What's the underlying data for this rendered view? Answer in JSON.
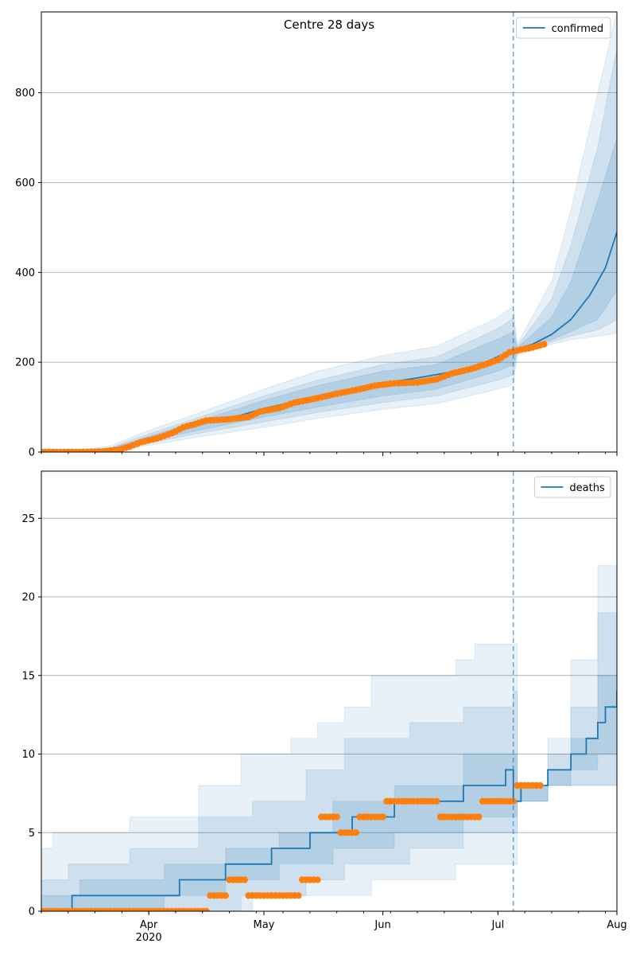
{
  "chart_data": [
    {
      "type": "line",
      "title": "Centre 28 days",
      "legend": {
        "entries": [
          "confirmed"
        ],
        "position": "top-right"
      },
      "grid": "horizontal",
      "x_start": "2020-03-04",
      "x_end": "2020-08-01",
      "vline_date": "2020-07-05",
      "xticks": [
        {
          "date": "2020-04-01",
          "label": "Apr",
          "sublabel": "2020"
        },
        {
          "date": "2020-05-01",
          "label": "May",
          "sublabel": ""
        },
        {
          "date": "2020-06-01",
          "label": "Jun",
          "sublabel": ""
        },
        {
          "date": "2020-07-01",
          "label": "Jul",
          "sublabel": ""
        },
        {
          "date": "2020-08-01",
          "label": "Aug",
          "sublabel": ""
        }
      ],
      "ylim": [
        0,
        980
      ],
      "yticks": [
        0,
        200,
        400,
        600,
        800
      ],
      "model_line": [
        {
          "x": "2020-03-04",
          "y": 0
        },
        {
          "x": "2020-03-14",
          "y": 1
        },
        {
          "x": "2020-03-22",
          "y": 5
        },
        {
          "x": "2020-03-28",
          "y": 15
        },
        {
          "x": "2020-04-04",
          "y": 35
        },
        {
          "x": "2020-04-11",
          "y": 55
        },
        {
          "x": "2020-04-18",
          "y": 70
        },
        {
          "x": "2020-04-25",
          "y": 82
        },
        {
          "x": "2020-05-01",
          "y": 97
        },
        {
          "x": "2020-05-08",
          "y": 110
        },
        {
          "x": "2020-05-15",
          "y": 125
        },
        {
          "x": "2020-05-22",
          "y": 137
        },
        {
          "x": "2020-06-01",
          "y": 153
        },
        {
          "x": "2020-06-10",
          "y": 165
        },
        {
          "x": "2020-06-20",
          "y": 180
        },
        {
          "x": "2020-06-27",
          "y": 197
        },
        {
          "x": "2020-07-05",
          "y": 228
        },
        {
          "x": "2020-07-10",
          "y": 240
        },
        {
          "x": "2020-07-15",
          "y": 262
        },
        {
          "x": "2020-07-20",
          "y": 295
        },
        {
          "x": "2020-07-25",
          "y": 350
        },
        {
          "x": "2020-07-29",
          "y": 410
        },
        {
          "x": "2020-08-01",
          "y": 490
        }
      ],
      "bands": [
        [
          {
            "x": "2020-03-04",
            "lo": 0,
            "hi": 0
          },
          {
            "x": "2020-03-14",
            "lo": 0,
            "hi": 3
          },
          {
            "x": "2020-03-22",
            "lo": 1,
            "hi": 14
          },
          {
            "x": "2020-04-01",
            "lo": 15,
            "hi": 48
          },
          {
            "x": "2020-04-15",
            "lo": 35,
            "hi": 90
          },
          {
            "x": "2020-05-01",
            "lo": 55,
            "hi": 140
          },
          {
            "x": "2020-05-15",
            "lo": 75,
            "hi": 180
          },
          {
            "x": "2020-06-01",
            "lo": 95,
            "hi": 215
          },
          {
            "x": "2020-06-15",
            "lo": 108,
            "hi": 235
          },
          {
            "x": "2020-07-01",
            "lo": 140,
            "hi": 300
          },
          {
            "x": "2020-07-05",
            "lo": 150,
            "hi": 325
          },
          {
            "x": "2020-07-06",
            "lo": 215,
            "hi": 240
          },
          {
            "x": "2020-07-15",
            "lo": 240,
            "hi": 380
          },
          {
            "x": "2020-07-20",
            "lo": 250,
            "hi": 540
          },
          {
            "x": "2020-07-27",
            "lo": 258,
            "hi": 800
          },
          {
            "x": "2020-08-01",
            "lo": 265,
            "hi": 980
          }
        ],
        [
          {
            "x": "2020-03-04",
            "lo": 0,
            "hi": 0
          },
          {
            "x": "2020-03-14",
            "lo": 0,
            "hi": 2
          },
          {
            "x": "2020-03-22",
            "lo": 2,
            "hi": 10
          },
          {
            "x": "2020-04-01",
            "lo": 20,
            "hi": 40
          },
          {
            "x": "2020-04-15",
            "lo": 43,
            "hi": 80
          },
          {
            "x": "2020-05-01",
            "lo": 67,
            "hi": 125
          },
          {
            "x": "2020-05-15",
            "lo": 88,
            "hi": 160
          },
          {
            "x": "2020-06-01",
            "lo": 110,
            "hi": 195
          },
          {
            "x": "2020-06-15",
            "lo": 125,
            "hi": 212
          },
          {
            "x": "2020-07-01",
            "lo": 160,
            "hi": 275
          },
          {
            "x": "2020-07-05",
            "lo": 172,
            "hi": 298
          },
          {
            "x": "2020-07-06",
            "lo": 220,
            "hi": 235
          },
          {
            "x": "2020-07-15",
            "lo": 245,
            "hi": 340
          },
          {
            "x": "2020-07-20",
            "lo": 258,
            "hi": 460
          },
          {
            "x": "2020-07-27",
            "lo": 272,
            "hi": 680
          },
          {
            "x": "2020-08-01",
            "lo": 295,
            "hi": 900
          }
        ],
        [
          {
            "x": "2020-03-04",
            "lo": 0,
            "hi": 0
          },
          {
            "x": "2020-03-14",
            "lo": 0,
            "hi": 1
          },
          {
            "x": "2020-03-22",
            "lo": 3,
            "hi": 8
          },
          {
            "x": "2020-04-01",
            "lo": 25,
            "hi": 35
          },
          {
            "x": "2020-04-15",
            "lo": 50,
            "hi": 72
          },
          {
            "x": "2020-05-01",
            "lo": 78,
            "hi": 115
          },
          {
            "x": "2020-05-15",
            "lo": 100,
            "hi": 148
          },
          {
            "x": "2020-06-01",
            "lo": 125,
            "hi": 180
          },
          {
            "x": "2020-06-15",
            "lo": 140,
            "hi": 195
          },
          {
            "x": "2020-07-01",
            "lo": 180,
            "hi": 252
          },
          {
            "x": "2020-07-05",
            "lo": 195,
            "hi": 268
          },
          {
            "x": "2020-07-06",
            "lo": 224,
            "hi": 232
          },
          {
            "x": "2020-07-15",
            "lo": 250,
            "hi": 300
          },
          {
            "x": "2020-07-20",
            "lo": 268,
            "hi": 380
          },
          {
            "x": "2020-07-27",
            "lo": 295,
            "hi": 560
          },
          {
            "x": "2020-08-01",
            "lo": 360,
            "hi": 700
          }
        ]
      ],
      "observed": [
        {
          "x": "2020-03-04",
          "y": 0
        },
        {
          "x": "2020-03-12",
          "y": 0
        },
        {
          "x": "2020-03-20",
          "y": 1
        },
        {
          "x": "2020-03-24",
          "y": 5
        },
        {
          "x": "2020-03-27",
          "y": 12
        },
        {
          "x": "2020-03-30",
          "y": 22
        },
        {
          "x": "2020-04-03",
          "y": 30
        },
        {
          "x": "2020-04-07",
          "y": 42
        },
        {
          "x": "2020-04-10",
          "y": 55
        },
        {
          "x": "2020-04-13",
          "y": 62
        },
        {
          "x": "2020-04-16",
          "y": 70
        },
        {
          "x": "2020-04-22",
          "y": 73
        },
        {
          "x": "2020-04-27",
          "y": 78
        },
        {
          "x": "2020-04-30",
          "y": 90
        },
        {
          "x": "2020-05-05",
          "y": 98
        },
        {
          "x": "2020-05-09",
          "y": 110
        },
        {
          "x": "2020-05-15",
          "y": 120
        },
        {
          "x": "2020-05-20",
          "y": 130
        },
        {
          "x": "2020-05-25",
          "y": 138
        },
        {
          "x": "2020-05-30",
          "y": 148
        },
        {
          "x": "2020-06-04",
          "y": 153
        },
        {
          "x": "2020-06-10",
          "y": 155
        },
        {
          "x": "2020-06-15",
          "y": 162
        },
        {
          "x": "2020-06-19",
          "y": 175
        },
        {
          "x": "2020-06-24",
          "y": 185
        },
        {
          "x": "2020-06-28",
          "y": 196
        },
        {
          "x": "2020-07-01",
          "y": 205
        },
        {
          "x": "2020-07-04",
          "y": 222
        },
        {
          "x": "2020-07-07",
          "y": 228
        },
        {
          "x": "2020-07-10",
          "y": 233
        },
        {
          "x": "2020-07-13",
          "y": 240
        }
      ]
    },
    {
      "type": "line",
      "title": "",
      "legend": {
        "entries": [
          "deaths"
        ],
        "position": "top-right"
      },
      "grid": "horizontal",
      "x_start": "2020-03-04",
      "x_end": "2020-08-01",
      "vline_date": "2020-07-05",
      "xticks": [
        {
          "date": "2020-04-01",
          "label": "Apr",
          "sublabel": "2020"
        },
        {
          "date": "2020-05-01",
          "label": "May",
          "sublabel": ""
        },
        {
          "date": "2020-06-01",
          "label": "Jun",
          "sublabel": ""
        },
        {
          "date": "2020-07-01",
          "label": "Jul",
          "sublabel": ""
        },
        {
          "date": "2020-08-01",
          "label": "Aug",
          "sublabel": ""
        }
      ],
      "ylim": [
        0,
        28
      ],
      "yticks": [
        0,
        5,
        10,
        15,
        20,
        25
      ],
      "model_line": [
        {
          "x": "2020-03-04",
          "y": 0
        },
        {
          "x": "2020-03-12",
          "y": 1
        },
        {
          "x": "2020-04-09",
          "y": 2
        },
        {
          "x": "2020-04-21",
          "y": 3
        },
        {
          "x": "2020-05-03",
          "y": 4
        },
        {
          "x": "2020-05-13",
          "y": 5
        },
        {
          "x": "2020-05-24",
          "y": 6
        },
        {
          "x": "2020-06-04",
          "y": 7
        },
        {
          "x": "2020-06-22",
          "y": 8
        },
        {
          "x": "2020-07-03",
          "y": 9
        },
        {
          "x": "2020-07-05",
          "y": 7
        },
        {
          "x": "2020-07-07",
          "y": 8
        },
        {
          "x": "2020-07-14",
          "y": 9
        },
        {
          "x": "2020-07-20",
          "y": 10
        },
        {
          "x": "2020-07-24",
          "y": 11
        },
        {
          "x": "2020-07-27",
          "y": 12
        },
        {
          "x": "2020-07-29",
          "y": 13
        },
        {
          "x": "2020-08-01",
          "y": 14
        }
      ],
      "bands": [
        [
          {
            "x": "2020-03-04",
            "lo": 0,
            "hi": 4
          },
          {
            "x": "2020-03-07",
            "lo": 0,
            "hi": 5
          },
          {
            "x": "2020-03-27",
            "lo": 0,
            "hi": 6
          },
          {
            "x": "2020-04-14",
            "lo": 0,
            "hi": 8
          },
          {
            "x": "2020-04-25",
            "lo": 1,
            "hi": 10
          },
          {
            "x": "2020-05-08",
            "lo": 1,
            "hi": 11
          },
          {
            "x": "2020-05-15",
            "lo": 1,
            "hi": 12
          },
          {
            "x": "2020-05-22",
            "lo": 1,
            "hi": 13
          },
          {
            "x": "2020-05-29",
            "lo": 2,
            "hi": 15
          },
          {
            "x": "2020-06-20",
            "lo": 3,
            "hi": 16
          },
          {
            "x": "2020-06-25",
            "lo": 3,
            "hi": 17
          },
          {
            "x": "2020-07-05",
            "lo": 3,
            "hi": 17
          },
          {
            "x": "2020-07-06",
            "lo": 7,
            "hi": 8
          },
          {
            "x": "2020-07-14",
            "lo": 8,
            "hi": 11
          },
          {
            "x": "2020-07-20",
            "lo": 8,
            "hi": 16
          },
          {
            "x": "2020-07-27",
            "lo": 8,
            "hi": 22
          },
          {
            "x": "2020-08-01",
            "lo": 8,
            "hi": 28
          }
        ],
        [
          {
            "x": "2020-03-04",
            "lo": 0,
            "hi": 2
          },
          {
            "x": "2020-03-11",
            "lo": 0,
            "hi": 3
          },
          {
            "x": "2020-03-27",
            "lo": 0,
            "hi": 4
          },
          {
            "x": "2020-04-14",
            "lo": 0,
            "hi": 6
          },
          {
            "x": "2020-04-28",
            "lo": 1,
            "hi": 7
          },
          {
            "x": "2020-05-12",
            "lo": 2,
            "hi": 9
          },
          {
            "x": "2020-05-22",
            "lo": 3,
            "hi": 11
          },
          {
            "x": "2020-06-08",
            "lo": 4,
            "hi": 12
          },
          {
            "x": "2020-06-22",
            "lo": 5,
            "hi": 13
          },
          {
            "x": "2020-07-05",
            "lo": 5,
            "hi": 14
          },
          {
            "x": "2020-07-06",
            "lo": 7,
            "hi": 8
          },
          {
            "x": "2020-07-14",
            "lo": 8,
            "hi": 10
          },
          {
            "x": "2020-07-20",
            "lo": 8,
            "hi": 13
          },
          {
            "x": "2020-07-27",
            "lo": 8,
            "hi": 19
          },
          {
            "x": "2020-08-01",
            "lo": 9,
            "hi": 24
          }
        ],
        [
          {
            "x": "2020-03-04",
            "lo": 0,
            "hi": 1
          },
          {
            "x": "2020-03-14",
            "lo": 0,
            "hi": 2
          },
          {
            "x": "2020-04-05",
            "lo": 1,
            "hi": 3
          },
          {
            "x": "2020-04-21",
            "lo": 2,
            "hi": 4
          },
          {
            "x": "2020-05-05",
            "lo": 3,
            "hi": 5
          },
          {
            "x": "2020-05-19",
            "lo": 4,
            "hi": 7
          },
          {
            "x": "2020-06-04",
            "lo": 5,
            "hi": 8
          },
          {
            "x": "2020-06-22",
            "lo": 6,
            "hi": 10
          },
          {
            "x": "2020-07-05",
            "lo": 6,
            "hi": 10
          },
          {
            "x": "2020-07-06",
            "lo": 7,
            "hi": 8
          },
          {
            "x": "2020-07-14",
            "lo": 8,
            "hi": 9
          },
          {
            "x": "2020-07-20",
            "lo": 9,
            "hi": 11
          },
          {
            "x": "2020-07-27",
            "lo": 10,
            "hi": 15
          },
          {
            "x": "2020-08-01",
            "lo": 11,
            "hi": 18
          }
        ]
      ],
      "observed": [
        {
          "x": "2020-03-04",
          "y": 0
        },
        {
          "x": "2020-03-10",
          "y": 0
        },
        {
          "x": "2020-03-16",
          "y": 0
        },
        {
          "x": "2020-03-22",
          "y": 0
        },
        {
          "x": "2020-03-28",
          "y": 0
        },
        {
          "x": "2020-04-03",
          "y": 0
        },
        {
          "x": "2020-04-09",
          "y": 0
        },
        {
          "x": "2020-04-15",
          "y": 0
        },
        {
          "x": "2020-04-17",
          "y": 1
        },
        {
          "x": "2020-04-20",
          "y": 1
        },
        {
          "x": "2020-04-22",
          "y": 2
        },
        {
          "x": "2020-04-25",
          "y": 2
        },
        {
          "x": "2020-04-27",
          "y": 1
        },
        {
          "x": "2020-05-01",
          "y": 1
        },
        {
          "x": "2020-05-05",
          "y": 1
        },
        {
          "x": "2020-05-09",
          "y": 1
        },
        {
          "x": "2020-05-11",
          "y": 2
        },
        {
          "x": "2020-05-14",
          "y": 2
        },
        {
          "x": "2020-05-16",
          "y": 6
        },
        {
          "x": "2020-05-19",
          "y": 6
        },
        {
          "x": "2020-05-21",
          "y": 5
        },
        {
          "x": "2020-05-24",
          "y": 5
        },
        {
          "x": "2020-05-26",
          "y": 6
        },
        {
          "x": "2020-05-30",
          "y": 6
        },
        {
          "x": "2020-06-02",
          "y": 7
        },
        {
          "x": "2020-06-06",
          "y": 7
        },
        {
          "x": "2020-06-10",
          "y": 7
        },
        {
          "x": "2020-06-14",
          "y": 7
        },
        {
          "x": "2020-06-16",
          "y": 6
        },
        {
          "x": "2020-06-20",
          "y": 6
        },
        {
          "x": "2020-06-24",
          "y": 6
        },
        {
          "x": "2020-06-27",
          "y": 7
        },
        {
          "x": "2020-07-01",
          "y": 7
        },
        {
          "x": "2020-07-04",
          "y": 7
        },
        {
          "x": "2020-07-06",
          "y": 8
        },
        {
          "x": "2020-07-09",
          "y": 8
        },
        {
          "x": "2020-07-12",
          "y": 8
        }
      ]
    }
  ],
  "colors": {
    "line": "#1f77b4",
    "band": "#1f77b4",
    "observed": "#ff7f0e",
    "grid": "#b0b0b0",
    "vline": "#1f77b4"
  }
}
